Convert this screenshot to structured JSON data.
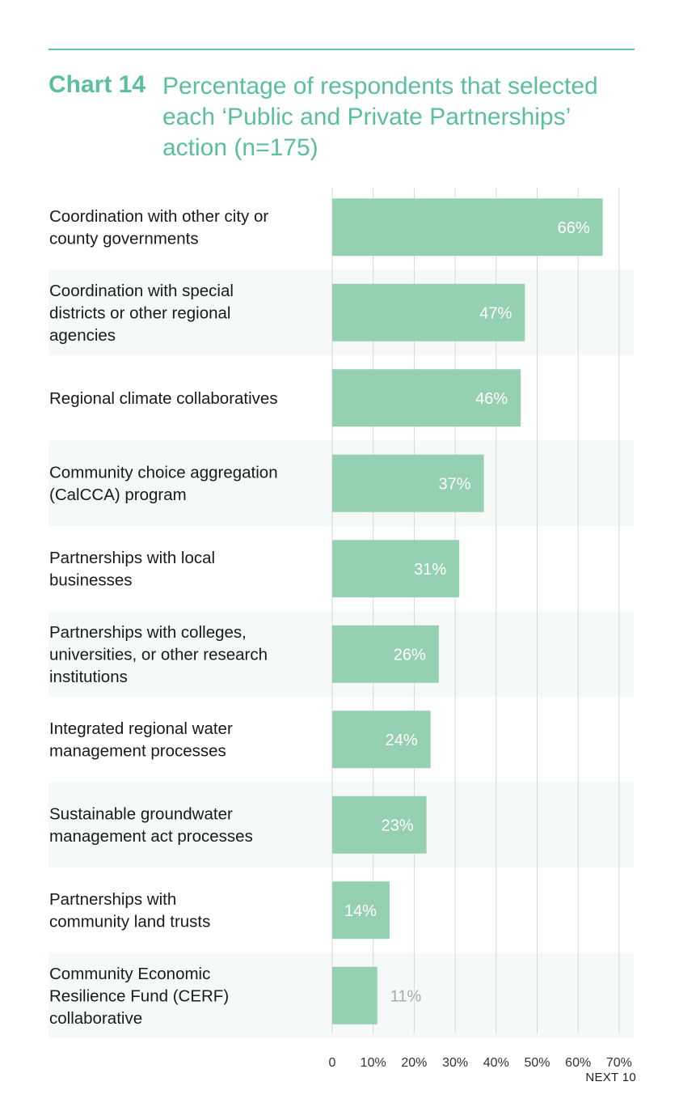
{
  "header": {
    "chart_number": "Chart 14",
    "title": "Percentage of respondents that selected each ‘Public and Private Partnerships’ action (n=175)"
  },
  "footer": {
    "brand": "NEXT 10"
  },
  "colors": {
    "accent": "#5bbf9f",
    "bar": "#95d1b1",
    "band": "#f5f9f7",
    "grid": "#d8d8d8"
  },
  "chart_data": {
    "type": "bar",
    "orientation": "horizontal",
    "title": "Percentage of respondents that selected each ‘Public and Private Partnerships’ action (n=175)",
    "categories": [
      [
        "Coordination with other city or",
        "county governments"
      ],
      [
        "Coordination with special",
        "districts or other regional",
        "agencies"
      ],
      [
        "Regional climate collaboratives"
      ],
      [
        "Community choice aggregation",
        "(CalCCA) program"
      ],
      [
        "Partnerships with local",
        "businesses"
      ],
      [
        "Partnerships with colleges,",
        "universities, or other research",
        "institutions"
      ],
      [
        "Integrated regional water",
        "management processes"
      ],
      [
        "Sustainable groundwater",
        "management act processes"
      ],
      [
        "Partnerships with",
        "community land trusts"
      ],
      [
        "Community Economic",
        "Resilience Fund (CERF)",
        "collaborative"
      ]
    ],
    "values": [
      66,
      47,
      46,
      37,
      31,
      26,
      24,
      23,
      14,
      11
    ],
    "value_labels": [
      "66%",
      "47%",
      "46%",
      "37%",
      "31%",
      "26%",
      "24%",
      "23%",
      "14%",
      "11%"
    ],
    "xlim": [
      0,
      70
    ],
    "x_ticks": [
      0,
      10,
      20,
      30,
      40,
      50,
      60,
      70
    ],
    "x_tick_labels": [
      "0",
      "10%",
      "20%",
      "30%",
      "40%",
      "50%",
      "60%",
      "70%"
    ],
    "grid": true,
    "legend": "none"
  }
}
